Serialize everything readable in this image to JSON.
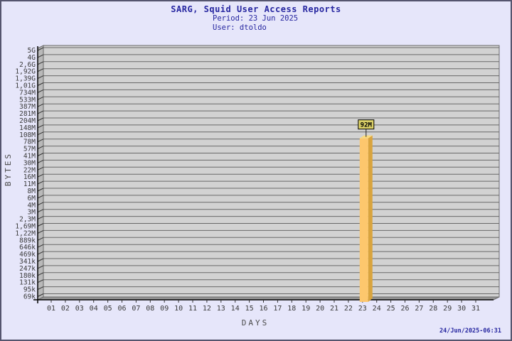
{
  "frame": {
    "bg": "#E6E6FA",
    "border_color": "#55556E"
  },
  "header": {
    "title": "SARG, Squid User Access Reports",
    "period": "Period: 23 Jun 2025",
    "user": "User: dtoldo"
  },
  "footer": {
    "timestamp": "24/Jun/2025-06:31"
  },
  "chart_data": {
    "type": "bar",
    "title": "SARG, Squid User Access Reports",
    "subtitle": "Period: 23 Jun 2025 / User: dtoldo",
    "xlabel": "DAYS",
    "ylabel": "BYTES",
    "y_scale": "log",
    "grid": "horizontal",
    "x_ticks": [
      "01",
      "02",
      "03",
      "04",
      "05",
      "06",
      "07",
      "08",
      "09",
      "10",
      "11",
      "12",
      "13",
      "14",
      "15",
      "16",
      "17",
      "18",
      "19",
      "20",
      "21",
      "22",
      "23",
      "24",
      "25",
      "26",
      "27",
      "28",
      "29",
      "30",
      "31"
    ],
    "y_ticks": [
      "5G",
      "4G",
      "2,6G",
      "1,92G",
      "1,39G",
      "1,01G",
      "734M",
      "533M",
      "387M",
      "281M",
      "204M",
      "148M",
      "108M",
      "78M",
      "57M",
      "41M",
      "30M",
      "22M",
      "16M",
      "11M",
      "8M",
      "6M",
      "4M",
      "3M",
      "2,3M",
      "1,69M",
      "1,22M",
      "889k",
      "646k",
      "469k",
      "341k",
      "247k",
      "180k",
      "131k",
      "95k",
      "69k"
    ],
    "bars": [
      {
        "day": "23",
        "value_bytes": 92000000,
        "label": "92M"
      }
    ],
    "colors": {
      "plot_bg": "#D2D2D2",
      "grid_line": "#696969",
      "wall": "#B9B9B9",
      "floor": "#959595",
      "axis": "#000000",
      "tick_text": "#3a3a3a",
      "bar_face": "#FDC76D",
      "bar_side": "#D9A43E",
      "bar_top": "#FBDB7E",
      "value_box_bg": "#DCD168",
      "value_box_border": "#000000",
      "value_text": "#000000"
    }
  }
}
